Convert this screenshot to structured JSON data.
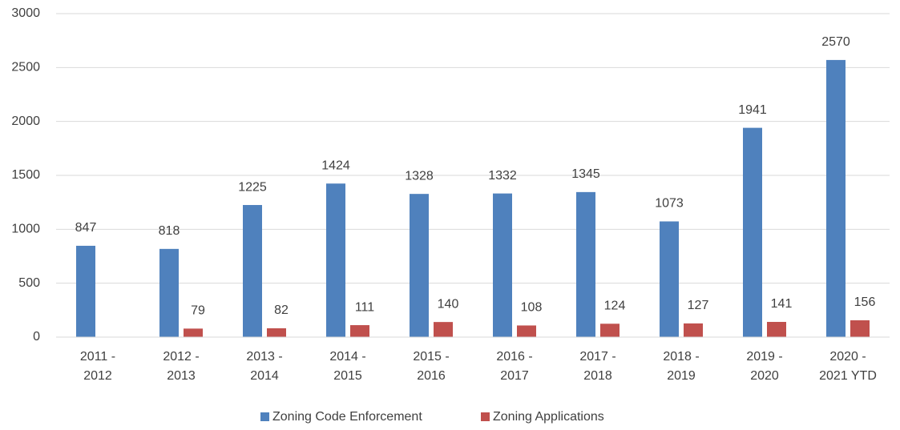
{
  "chart_data": {
    "type": "bar",
    "categories": [
      "2011 - 2012",
      "2012 - 2013",
      "2013 - 2014",
      "2014 - 2015",
      "2015 - 2016",
      "2016 - 2017",
      "2017 - 2018",
      "2018 - 2019",
      "2019 - 2020",
      "2020 - 2021 YTD"
    ],
    "series": [
      {
        "name": "Zoning Code Enforcement",
        "color": "#4f81bd",
        "values": [
          847,
          818,
          1225,
          1424,
          1328,
          1332,
          1345,
          1073,
          1941,
          2570
        ]
      },
      {
        "name": "Zoning Applications",
        "color": "#c0504d",
        "values": [
          null,
          79,
          82,
          111,
          140,
          108,
          124,
          127,
          141,
          156
        ]
      }
    ],
    "ylim": [
      0,
      3000
    ],
    "yticks": [
      0,
      500,
      1000,
      1500,
      2000,
      2500,
      3000
    ],
    "grid": true,
    "legend": "bottom"
  }
}
